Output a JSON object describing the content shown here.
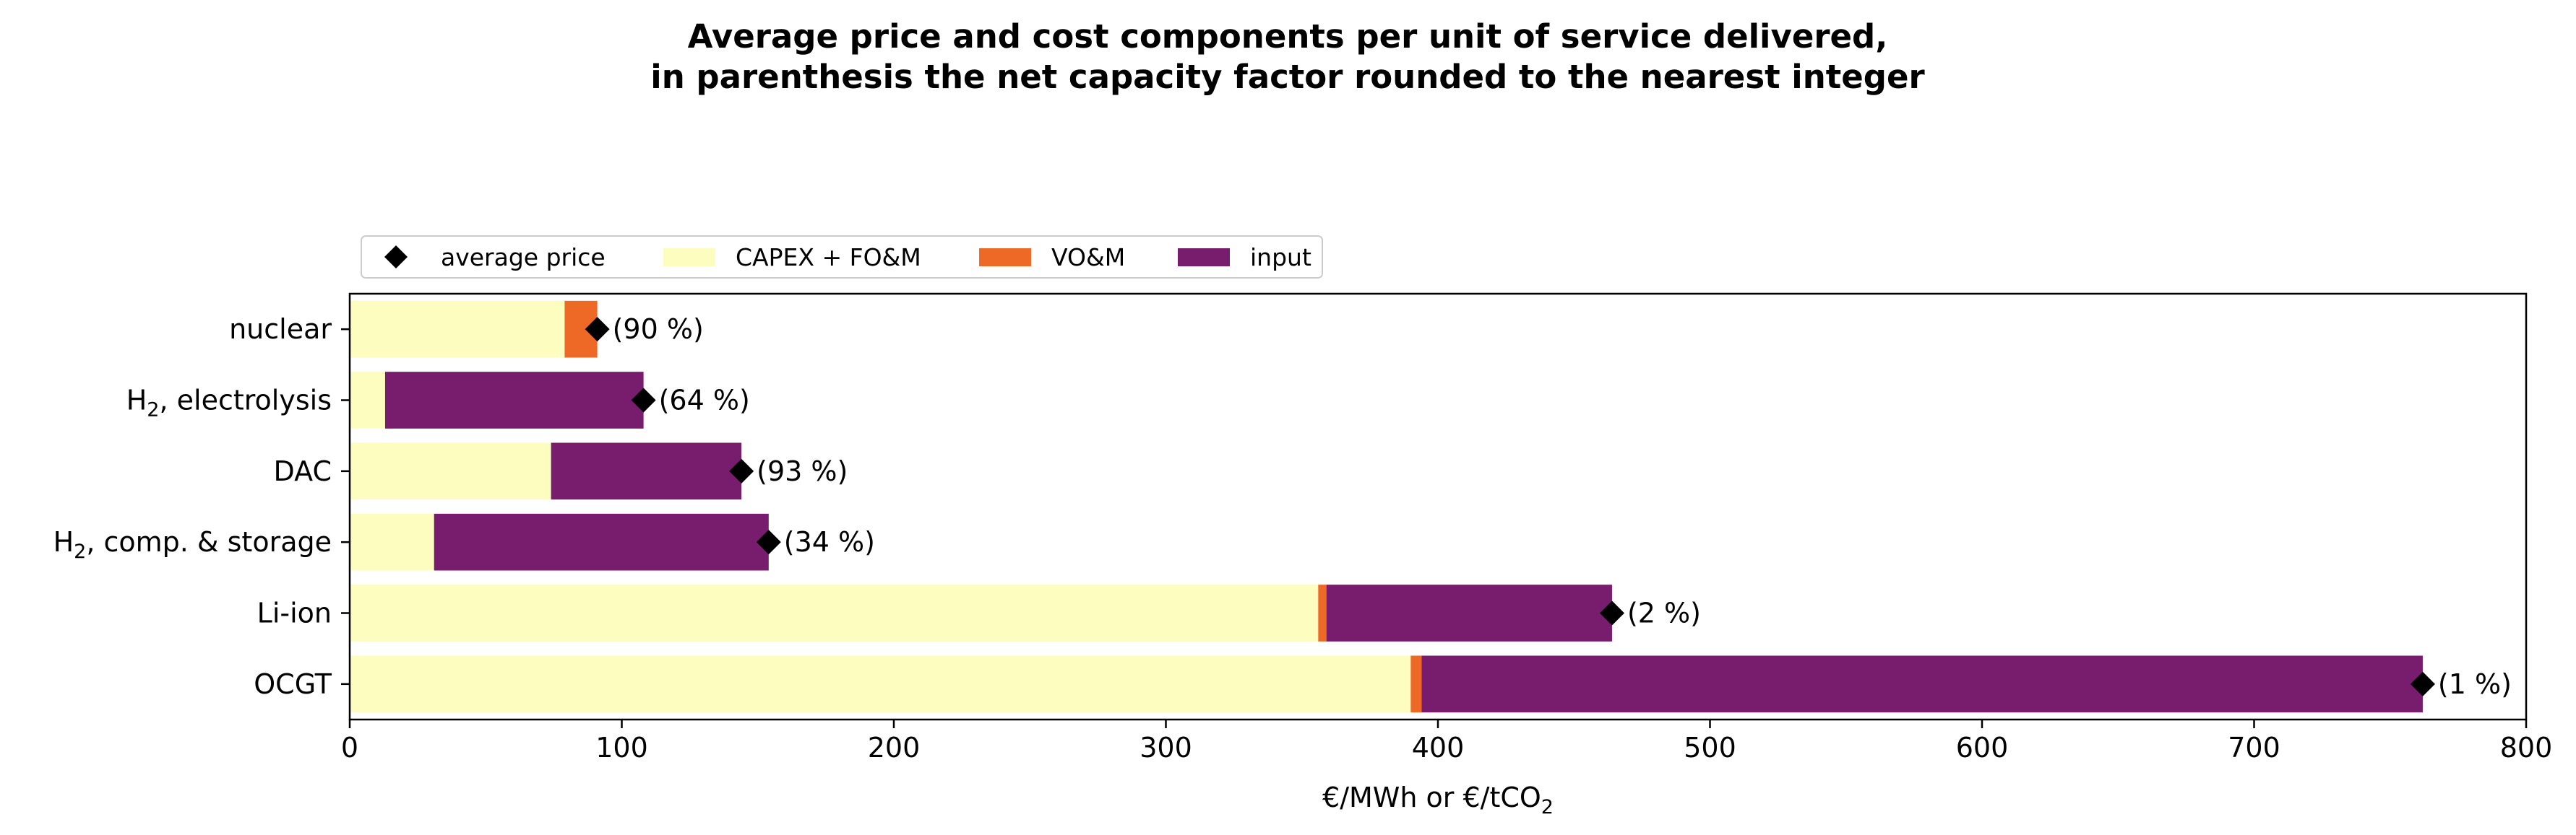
{
  "chart_data": {
    "type": "bar",
    "orientation": "horizontal",
    "stacked": true,
    "title": "Average price and cost components per unit of service delivered,",
    "title_line2": "in parenthesis the net capacity factor rounded to the nearest integer",
    "xlabel": "€/MWh or €/tCO",
    "xlabel_sub": "2",
    "xlim": [
      0,
      800
    ],
    "xticks": [
      0,
      100,
      200,
      300,
      400,
      500,
      600,
      700,
      800
    ],
    "grid": false,
    "legend_position": "top-left, above plot",
    "categories": [
      {
        "label": "nuclear",
        "sub": "",
        "suffix": ""
      },
      {
        "label": "H",
        "sub": "2",
        "suffix": ", electrolysis"
      },
      {
        "label": "DAC",
        "sub": "",
        "suffix": ""
      },
      {
        "label": "H",
        "sub": "2",
        "suffix": ", comp. & storage"
      },
      {
        "label": "Li-ion",
        "sub": "",
        "suffix": ""
      },
      {
        "label": "OCGT",
        "sub": "",
        "suffix": ""
      }
    ],
    "series": [
      {
        "name": "CAPEX + FO&M",
        "color": "#fcfdbf",
        "values": [
          79,
          13,
          74,
          31,
          356,
          390
        ]
      },
      {
        "name": "VO&M",
        "color": "#ed6925",
        "values": [
          12,
          0,
          0,
          0,
          3,
          4
        ]
      },
      {
        "name": "input",
        "color": "#781c6d",
        "values": [
          0,
          95,
          70,
          123,
          105,
          368
        ]
      }
    ],
    "average_price": {
      "name": "average price",
      "marker": "diamond",
      "color": "#000000",
      "values": [
        91,
        108,
        144,
        154,
        464,
        762
      ]
    },
    "annotations": [
      "(90 %)",
      "(64 %)",
      "(93 %)",
      "(34 %)",
      "(2 %)",
      "(1 %)"
    ]
  }
}
